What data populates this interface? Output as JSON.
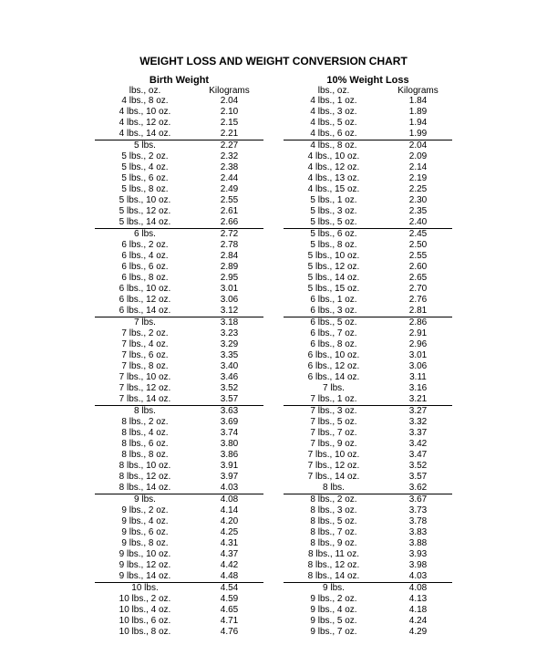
{
  "title": "WEIGHT LOSS AND WEIGHT CONVERSION CHART",
  "headers": {
    "left": "Birth Weight",
    "right": "10% Weight Loss",
    "sub_left": "lbs., oz.",
    "sub_right": "Kilograms"
  },
  "colors": {
    "background": "#ffffff",
    "text": "#000000",
    "rule": "#000000"
  },
  "typography": {
    "title_fontsize": 12,
    "header_fontsize": 11,
    "body_fontsize": 10,
    "font_family": "Arial"
  },
  "left_rows": [
    {
      "lbs": "4 lbs., 8 oz.",
      "kg": "2.04",
      "u": false
    },
    {
      "lbs": "4 lbs., 10 oz.",
      "kg": "2.10",
      "u": false
    },
    {
      "lbs": "4 lbs., 12 oz.",
      "kg": "2.15",
      "u": false
    },
    {
      "lbs": "4 lbs., 14 oz.",
      "kg": "2.21",
      "u": true
    },
    {
      "lbs": "5 lbs.",
      "kg": "2.27",
      "u": false
    },
    {
      "lbs": "5 lbs., 2 oz.",
      "kg": "2.32",
      "u": false
    },
    {
      "lbs": "5 lbs., 4 oz.",
      "kg": "2.38",
      "u": false
    },
    {
      "lbs": "5 lbs., 6 oz.",
      "kg": "2.44",
      "u": false
    },
    {
      "lbs": "5 lbs., 8 oz.",
      "kg": "2.49",
      "u": false
    },
    {
      "lbs": "5 lbs., 10 oz.",
      "kg": "2.55",
      "u": false
    },
    {
      "lbs": "5 lbs., 12 oz.",
      "kg": "2.61",
      "u": false
    },
    {
      "lbs": "5 lbs., 14 oz.",
      "kg": "2.66",
      "u": true
    },
    {
      "lbs": "6 lbs.",
      "kg": "2.72",
      "u": false
    },
    {
      "lbs": "6 lbs., 2 oz.",
      "kg": "2.78",
      "u": false
    },
    {
      "lbs": "6 lbs., 4 oz.",
      "kg": "2.84",
      "u": false
    },
    {
      "lbs": "6 lbs., 6 oz.",
      "kg": "2.89",
      "u": false
    },
    {
      "lbs": "6 lbs., 8 oz.",
      "kg": "2.95",
      "u": false
    },
    {
      "lbs": "6 lbs., 10 oz.",
      "kg": "3.01",
      "u": false
    },
    {
      "lbs": "6 lbs., 12 oz.",
      "kg": "3.06",
      "u": false
    },
    {
      "lbs": "6 lbs., 14 oz.",
      "kg": "3.12",
      "u": true
    },
    {
      "lbs": "7 lbs.",
      "kg": "3.18",
      "u": false
    },
    {
      "lbs": "7 lbs., 2 oz.",
      "kg": "3.23",
      "u": false
    },
    {
      "lbs": "7 lbs., 4 oz.",
      "kg": "3.29",
      "u": false
    },
    {
      "lbs": "7 lbs., 6 oz.",
      "kg": "3.35",
      "u": false
    },
    {
      "lbs": "7 lbs., 8 oz.",
      "kg": "3.40",
      "u": false
    },
    {
      "lbs": "7 lbs., 10 oz.",
      "kg": "3.46",
      "u": false
    },
    {
      "lbs": "7 lbs., 12 oz.",
      "kg": "3.52",
      "u": false
    },
    {
      "lbs": "7 lbs., 14 oz.",
      "kg": "3.57",
      "u": true
    },
    {
      "lbs": "8 lbs.",
      "kg": "3.63",
      "u": false
    },
    {
      "lbs": "8 lbs., 2 oz.",
      "kg": "3.69",
      "u": false
    },
    {
      "lbs": "8 lbs., 4 oz.",
      "kg": "3.74",
      "u": false
    },
    {
      "lbs": "8 lbs., 6 oz.",
      "kg": "3.80",
      "u": false
    },
    {
      "lbs": "8 lbs., 8 oz.",
      "kg": "3.86",
      "u": false
    },
    {
      "lbs": "8 lbs., 10 oz.",
      "kg": "3.91",
      "u": false
    },
    {
      "lbs": "8 lbs., 12 oz.",
      "kg": "3.97",
      "u": false
    },
    {
      "lbs": "8 lbs., 14 oz.",
      "kg": "4.03",
      "u": true
    },
    {
      "lbs": "9 lbs.",
      "kg": "4.08",
      "u": false
    },
    {
      "lbs": "9 lbs., 2 oz.",
      "kg": "4.14",
      "u": false
    },
    {
      "lbs": "9 lbs., 4 oz.",
      "kg": "4.20",
      "u": false
    },
    {
      "lbs": "9 lbs., 6 oz.",
      "kg": "4.25",
      "u": false
    },
    {
      "lbs": "9 lbs., 8 oz.",
      "kg": "4.31",
      "u": false
    },
    {
      "lbs": "9 lbs., 10 oz.",
      "kg": "4.37",
      "u": false
    },
    {
      "lbs": "9 lbs., 12 oz.",
      "kg": "4.42",
      "u": false
    },
    {
      "lbs": "9 lbs., 14 oz.",
      "kg": "4.48",
      "u": true
    },
    {
      "lbs": "10 lbs.",
      "kg": "4.54",
      "u": false
    },
    {
      "lbs": "10 lbs., 2 oz.",
      "kg": "4.59",
      "u": false
    },
    {
      "lbs": "10 lbs., 4 oz.",
      "kg": "4.65",
      "u": false
    },
    {
      "lbs": "10 lbs., 6 oz.",
      "kg": "4.71",
      "u": false
    },
    {
      "lbs": "10 lbs., 8 oz.",
      "kg": "4.76",
      "u": false
    }
  ],
  "right_rows": [
    {
      "lbs": "4 lbs., 1 oz.",
      "kg": "1.84",
      "u": false
    },
    {
      "lbs": "4 lbs., 3 oz.",
      "kg": "1.89",
      "u": false
    },
    {
      "lbs": "4 lbs., 5 oz.",
      "kg": "1.94",
      "u": false
    },
    {
      "lbs": "4 lbs., 6 oz.",
      "kg": "1.99",
      "u": true
    },
    {
      "lbs": "4 lbs., 8 oz.",
      "kg": "2.04",
      "u": false
    },
    {
      "lbs": "4 lbs., 10 oz.",
      "kg": "2.09",
      "u": false
    },
    {
      "lbs": "4 lbs., 12 oz.",
      "kg": "2.14",
      "u": false
    },
    {
      "lbs": "4 lbs., 13 oz.",
      "kg": "2.19",
      "u": false
    },
    {
      "lbs": "4 lbs., 15 oz.",
      "kg": "2.25",
      "u": false
    },
    {
      "lbs": "5 lbs., 1 oz.",
      "kg": "2.30",
      "u": false
    },
    {
      "lbs": "5 lbs., 3 oz.",
      "kg": "2.35",
      "u": false
    },
    {
      "lbs": "5 lbs., 5 oz.",
      "kg": "2.40",
      "u": true
    },
    {
      "lbs": "5 lbs., 6 oz.",
      "kg": "2.45",
      "u": false
    },
    {
      "lbs": "5 lbs., 8 oz.",
      "kg": "2.50",
      "u": false
    },
    {
      "lbs": "5 lbs., 10 oz.",
      "kg": "2.55",
      "u": false
    },
    {
      "lbs": "5 lbs., 12 oz.",
      "kg": "2.60",
      "u": false
    },
    {
      "lbs": "5 lbs., 14 oz.",
      "kg": "2.65",
      "u": false
    },
    {
      "lbs": "5 lbs., 15 oz.",
      "kg": "2.70",
      "u": false
    },
    {
      "lbs": "6 lbs., 1 oz.",
      "kg": "2.76",
      "u": false
    },
    {
      "lbs": "6 lbs., 3 oz.",
      "kg": "2.81",
      "u": true
    },
    {
      "lbs": "6 lbs., 5 oz.",
      "kg": "2.86",
      "u": false
    },
    {
      "lbs": "6 lbs., 7 oz.",
      "kg": "2.91",
      "u": false
    },
    {
      "lbs": "6 lbs., 8 oz.",
      "kg": "2.96",
      "u": false
    },
    {
      "lbs": "6 lbs., 10 oz.",
      "kg": "3.01",
      "u": false
    },
    {
      "lbs": "6 lbs., 12 oz.",
      "kg": "3.06",
      "u": false
    },
    {
      "lbs": "6 lbs., 14 oz.",
      "kg": "3.11",
      "u": false
    },
    {
      "lbs": "7 lbs.",
      "kg": "3.16",
      "u": false
    },
    {
      "lbs": "7 lbs., 1 oz.",
      "kg": "3.21",
      "u": true
    },
    {
      "lbs": "7 lbs., 3 oz.",
      "kg": "3.27",
      "u": false
    },
    {
      "lbs": "7 lbs., 5 oz.",
      "kg": "3.32",
      "u": false
    },
    {
      "lbs": "7 lbs., 7 oz.",
      "kg": "3.37",
      "u": false
    },
    {
      "lbs": "7 lbs., 9 oz.",
      "kg": "3.42",
      "u": false
    },
    {
      "lbs": "7 lbs., 10 oz.",
      "kg": "3.47",
      "u": false
    },
    {
      "lbs": "7 lbs., 12 oz.",
      "kg": "3.52",
      "u": false
    },
    {
      "lbs": "7 lbs., 14 oz.",
      "kg": "3.57",
      "u": false
    },
    {
      "lbs": "8 lbs.",
      "kg": "3.62",
      "u": true
    },
    {
      "lbs": "8 lbs., 2 oz.",
      "kg": "3.67",
      "u": false
    },
    {
      "lbs": "8 lbs., 3 oz.",
      "kg": "3.73",
      "u": false
    },
    {
      "lbs": "8 lbs., 5 oz.",
      "kg": "3.78",
      "u": false
    },
    {
      "lbs": "8 lbs., 7 oz.",
      "kg": "3.83",
      "u": false
    },
    {
      "lbs": "8 lbs., 9 oz.",
      "kg": "3.88",
      "u": false
    },
    {
      "lbs": "8 lbs., 11 oz.",
      "kg": "3.93",
      "u": false
    },
    {
      "lbs": "8 lbs., 12 oz.",
      "kg": "3.98",
      "u": false
    },
    {
      "lbs": "8 lbs., 14 oz.",
      "kg": "4.03",
      "u": true
    },
    {
      "lbs": "9 lbs.",
      "kg": "4.08",
      "u": false
    },
    {
      "lbs": "9 lbs., 2 oz.",
      "kg": "4.13",
      "u": false
    },
    {
      "lbs": "9 lbs., 4 oz.",
      "kg": "4.18",
      "u": false
    },
    {
      "lbs": "9 lbs., 5 oz.",
      "kg": "4.24",
      "u": false
    },
    {
      "lbs": "9 lbs., 7 oz.",
      "kg": "4.29",
      "u": false
    }
  ]
}
